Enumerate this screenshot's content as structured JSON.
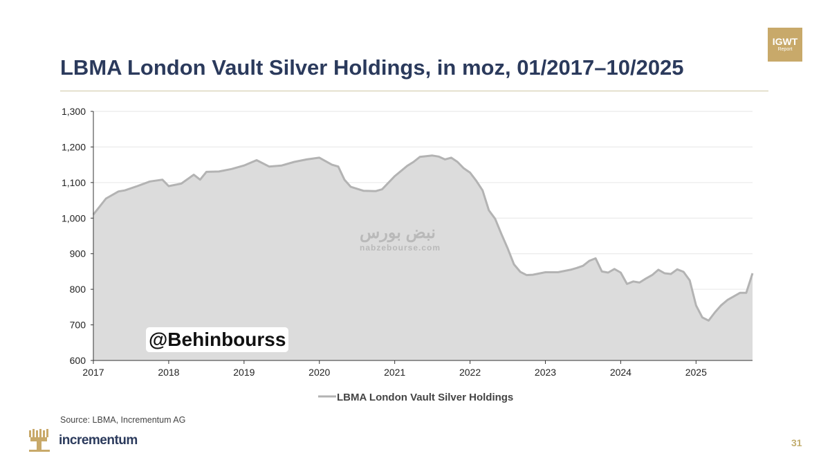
{
  "header": {
    "title": "LBMA London Vault Silver Holdings, in moz, 01/2017–10/2025"
  },
  "badge": {
    "line1": "IGWT",
    "line2": "Report"
  },
  "footer": {
    "source": "Source: LBMA, Incrementum AG",
    "brand": "incrementum",
    "page_number": "31"
  },
  "overlay": {
    "handle": "@Behinbourss",
    "watermark_fa": "نبض بورس",
    "watermark_url": "nabzebourse.com"
  },
  "colors": {
    "title": "#2b3a5c",
    "accent_gold": "#c8a96a",
    "series_line": "#b3b3b3",
    "series_fill": "#dcdcdc"
  },
  "chart_data": {
    "type": "area",
    "x_start": "2017-01",
    "x_end": "2025-10",
    "ylim": [
      600,
      1300
    ],
    "yticks": [
      "600",
      "700",
      "800",
      "900",
      "1,000",
      "1,100",
      "1,200",
      "1,300"
    ],
    "xticks": [
      "2017",
      "2018",
      "2019",
      "2020",
      "2021",
      "2022",
      "2023",
      "2024",
      "2025"
    ],
    "grid": true,
    "legend": "bottom-center",
    "series": [
      {
        "name": "LBMA London Vault Silver Holdings",
        "x": [
          "2017-01",
          "2017-03",
          "2017-05",
          "2017-06",
          "2017-08",
          "2017-10",
          "2017-12",
          "2018-01",
          "2018-03",
          "2018-05",
          "2018-06",
          "2018-07",
          "2018-09",
          "2018-11",
          "2019-01",
          "2019-03",
          "2019-05",
          "2019-07",
          "2019-09",
          "2019-11",
          "2020-01",
          "2020-03",
          "2020-04",
          "2020-05",
          "2020-06",
          "2020-08",
          "2020-10",
          "2020-11",
          "2021-01",
          "2021-03",
          "2021-04",
          "2021-05",
          "2021-07",
          "2021-08",
          "2021-09",
          "2021-10",
          "2021-11",
          "2021-12",
          "2022-01",
          "2022-02",
          "2022-03",
          "2022-04",
          "2022-05",
          "2022-06",
          "2022-07",
          "2022-08",
          "2022-09",
          "2022-10",
          "2022-11",
          "2023-01",
          "2023-03",
          "2023-05",
          "2023-06",
          "2023-07",
          "2023-08",
          "2023-09",
          "2023-10",
          "2023-11",
          "2023-12",
          "2024-01",
          "2024-02",
          "2024-03",
          "2024-04",
          "2024-05",
          "2024-06",
          "2024-07",
          "2024-08",
          "2024-09",
          "2024-10",
          "2024-11",
          "2024-12",
          "2025-01",
          "2025-02",
          "2025-03",
          "2025-04",
          "2025-05",
          "2025-06",
          "2025-07",
          "2025-08",
          "2025-09",
          "2025-10"
        ],
        "y": [
          1010,
          1055,
          1075,
          1078,
          1090,
          1103,
          1108,
          1090,
          1097,
          1122,
          1108,
          1130,
          1131,
          1138,
          1148,
          1163,
          1145,
          1148,
          1158,
          1165,
          1170,
          1150,
          1145,
          1108,
          1088,
          1077,
          1076,
          1081,
          1118,
          1147,
          1158,
          1172,
          1176,
          1173,
          1165,
          1170,
          1158,
          1140,
          1128,
          1105,
          1078,
          1022,
          998,
          955,
          915,
          870,
          849,
          840,
          841,
          848,
          848,
          855,
          860,
          866,
          880,
          887,
          850,
          847,
          857,
          847,
          815,
          822,
          819,
          830,
          840,
          855,
          845,
          843,
          856,
          849,
          825,
          755,
          721,
          712,
          735,
          755,
          770,
          780,
          790,
          790,
          845
        ]
      }
    ]
  }
}
